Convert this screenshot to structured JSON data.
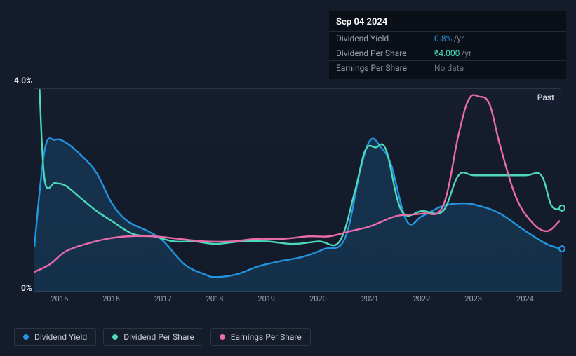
{
  "tooltip": {
    "date": "Sep 04 2024",
    "rows": [
      {
        "label": "Dividend Yield",
        "value": "0.8%",
        "suffix": "/yr",
        "valueClass": "v-blue"
      },
      {
        "label": "Dividend Per Share",
        "value": "₹4.000",
        "suffix": "/yr",
        "valueClass": "v-teal"
      },
      {
        "label": "Earnings Per Share",
        "value": "No data",
        "suffix": "",
        "valueClass": "v-gray"
      }
    ]
  },
  "chart": {
    "y_max_label": "4.0%",
    "y_min_label": "0%",
    "past_label": "Past",
    "y_domain": [
      0,
      4.0
    ],
    "x_domain": [
      2014.5,
      2024.7
    ],
    "x_ticks": [
      "2015",
      "2016",
      "2017",
      "2018",
      "2019",
      "2020",
      "2021",
      "2022",
      "2023",
      "2024"
    ],
    "series": {
      "dividend_yield": {
        "color": "#2394df",
        "area": true,
        "width": 2.4,
        "end_marker": true,
        "points": [
          [
            2014.5,
            0.9
          ],
          [
            2014.7,
            2.8
          ],
          [
            2014.9,
            3.0
          ],
          [
            2015.1,
            2.95
          ],
          [
            2015.4,
            2.7
          ],
          [
            2015.7,
            2.35
          ],
          [
            2016.0,
            1.75
          ],
          [
            2016.3,
            1.4
          ],
          [
            2016.7,
            1.2
          ],
          [
            2017.0,
            1.0
          ],
          [
            2017.4,
            0.55
          ],
          [
            2017.8,
            0.35
          ],
          [
            2018.0,
            0.3
          ],
          [
            2018.4,
            0.35
          ],
          [
            2018.8,
            0.5
          ],
          [
            2019.2,
            0.6
          ],
          [
            2019.7,
            0.7
          ],
          [
            2020.1,
            0.85
          ],
          [
            2020.5,
            1.05
          ],
          [
            2020.8,
            2.4
          ],
          [
            2021.0,
            3.0
          ],
          [
            2021.2,
            2.85
          ],
          [
            2021.4,
            2.5
          ],
          [
            2021.7,
            1.4
          ],
          [
            2022.0,
            1.5
          ],
          [
            2022.4,
            1.7
          ],
          [
            2022.8,
            1.75
          ],
          [
            2023.1,
            1.7
          ],
          [
            2023.5,
            1.55
          ],
          [
            2024.0,
            1.2
          ],
          [
            2024.4,
            0.95
          ],
          [
            2024.7,
            0.85
          ]
        ]
      },
      "dividend_per_share": {
        "color": "#4ed7b8",
        "area": false,
        "width": 2.4,
        "end_marker": true,
        "points": [
          [
            2014.6,
            4.0
          ],
          [
            2014.7,
            2.2
          ],
          [
            2014.9,
            2.15
          ],
          [
            2015.1,
            2.1
          ],
          [
            2015.4,
            1.85
          ],
          [
            2015.7,
            1.6
          ],
          [
            2016.0,
            1.4
          ],
          [
            2016.4,
            1.15
          ],
          [
            2016.8,
            1.1
          ],
          [
            2017.2,
            1.0
          ],
          [
            2017.6,
            1.0
          ],
          [
            2018.0,
            0.95
          ],
          [
            2018.5,
            1.0
          ],
          [
            2019.0,
            1.0
          ],
          [
            2019.5,
            0.95
          ],
          [
            2020.0,
            1.0
          ],
          [
            2020.4,
            1.0
          ],
          [
            2020.7,
            2.0
          ],
          [
            2020.9,
            2.8
          ],
          [
            2021.1,
            2.85
          ],
          [
            2021.3,
            2.8
          ],
          [
            2021.6,
            1.6
          ],
          [
            2022.0,
            1.6
          ],
          [
            2022.4,
            1.6
          ],
          [
            2022.7,
            2.3
          ],
          [
            2023.0,
            2.3
          ],
          [
            2023.5,
            2.3
          ],
          [
            2024.0,
            2.3
          ],
          [
            2024.3,
            2.3
          ],
          [
            2024.5,
            1.7
          ],
          [
            2024.7,
            1.65
          ]
        ]
      },
      "earnings_per_share": {
        "color": "#e96baa",
        "area": false,
        "width": 2.4,
        "end_marker": false,
        "points": [
          [
            2014.5,
            0.4
          ],
          [
            2014.8,
            0.55
          ],
          [
            2015.1,
            0.8
          ],
          [
            2015.5,
            0.95
          ],
          [
            2015.9,
            1.05
          ],
          [
            2016.3,
            1.1
          ],
          [
            2016.8,
            1.1
          ],
          [
            2017.3,
            1.05
          ],
          [
            2017.8,
            1.0
          ],
          [
            2018.3,
            1.0
          ],
          [
            2018.8,
            1.05
          ],
          [
            2019.3,
            1.05
          ],
          [
            2019.8,
            1.1
          ],
          [
            2020.2,
            1.1
          ],
          [
            2020.6,
            1.2
          ],
          [
            2021.0,
            1.3
          ],
          [
            2021.5,
            1.5
          ],
          [
            2022.0,
            1.55
          ],
          [
            2022.4,
            1.7
          ],
          [
            2022.7,
            3.1
          ],
          [
            2022.9,
            3.8
          ],
          [
            2023.1,
            3.85
          ],
          [
            2023.3,
            3.7
          ],
          [
            2023.5,
            2.9
          ],
          [
            2023.8,
            1.9
          ],
          [
            2024.1,
            1.4
          ],
          [
            2024.4,
            1.2
          ],
          [
            2024.65,
            1.4
          ]
        ]
      }
    },
    "legend": [
      {
        "label": "Dividend Yield",
        "dotClass": "dot-blue"
      },
      {
        "label": "Dividend Per Share",
        "dotClass": "dot-teal"
      },
      {
        "label": "Earnings Per Share",
        "dotClass": "dot-pink"
      }
    ]
  }
}
